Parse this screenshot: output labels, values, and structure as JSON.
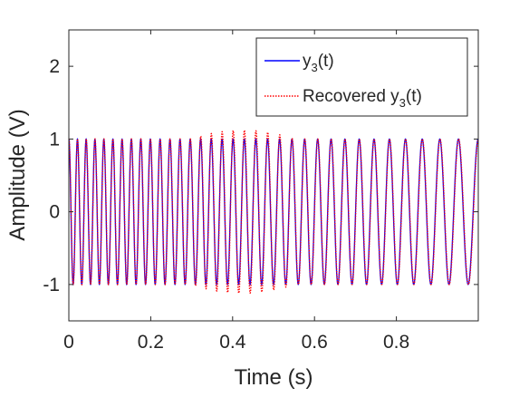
{
  "chart_data": {
    "type": "line",
    "xlabel": "Time (s)",
    "ylabel": "Amplitude (V)",
    "xlim": [
      0,
      1
    ],
    "ylim": [
      -1.5,
      2.5
    ],
    "xticks": [
      0,
      0.2,
      0.4,
      0.6,
      0.8
    ],
    "xtick_labels": [
      "0",
      "0.2",
      "0.4",
      "0.6",
      "0.8"
    ],
    "yticks": [
      -1,
      0,
      1,
      2
    ],
    "ytick_labels": [
      "-1",
      "0",
      "1",
      "2"
    ],
    "grid": false,
    "legend_position": "top-right",
    "signal": {
      "description_in_data_units": "chirp-like sinusoid, frequency decreasing over time",
      "frequency_start_hz": 48,
      "frequency_end_hz": 20,
      "amplitude": 1,
      "x": [
        0,
        0.1,
        0.2,
        0.3,
        0.4,
        0.5,
        0.6,
        0.7,
        0.8,
        0.9,
        1.0
      ],
      "instantaneous_frequency_hz": [
        48,
        45.2,
        42.4,
        39.6,
        36.8,
        34,
        31.2,
        28.4,
        25.6,
        22.8,
        20
      ]
    },
    "series": [
      {
        "name_main": "y",
        "name_sub": "3",
        "name_tail": "(t)",
        "color": "#0000ff",
        "style": "solid",
        "peak_amplitude": 1
      },
      {
        "name_main": "Recovered y",
        "name_sub": "3",
        "name_tail": "(t)",
        "color": "#ff0000",
        "style": "dotted",
        "peak_amplitude_max": 1.12,
        "trough_amplitude_min": -1.1,
        "overshoot_region_x": [
          0.3,
          0.55
        ]
      }
    ]
  }
}
